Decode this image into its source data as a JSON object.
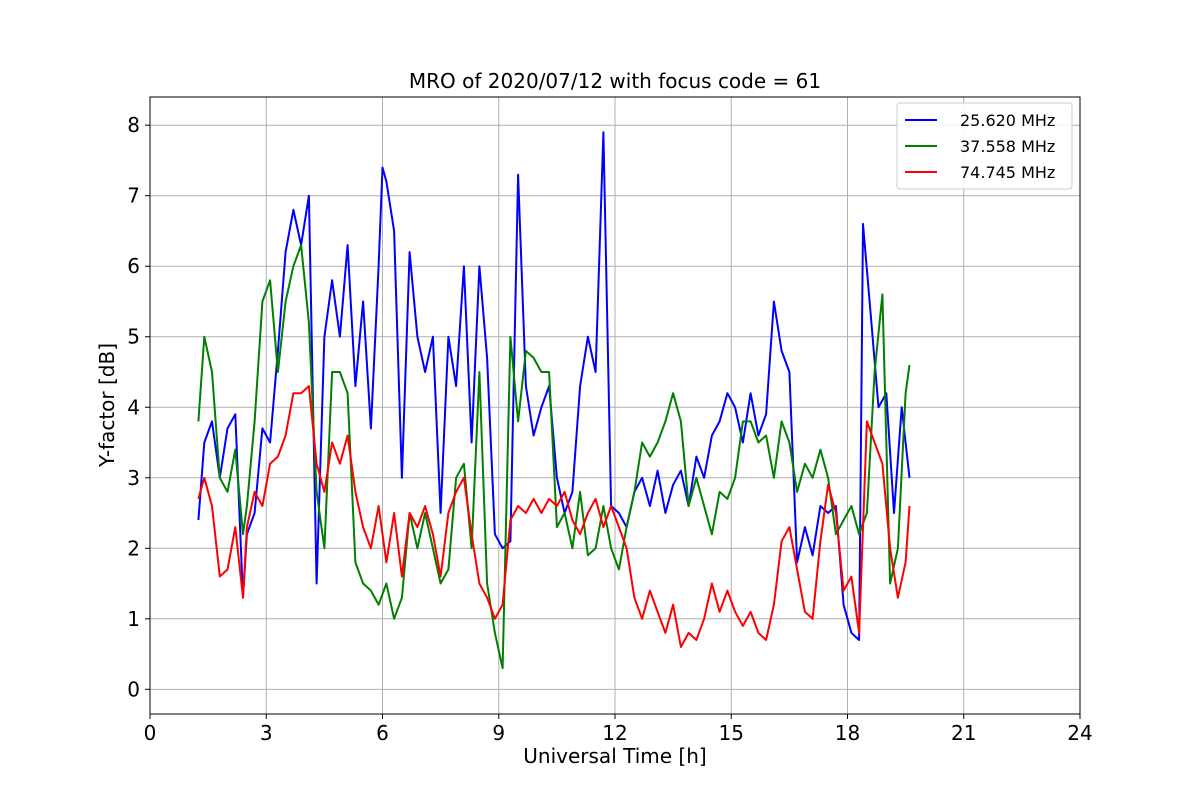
{
  "chart_data": {
    "type": "line",
    "title": "MRO of 2020/07/12 with focus code = 61",
    "xlabel": "Universal Time [h]",
    "ylabel": "Y-factor [dB]",
    "xlim": [
      0,
      24
    ],
    "ylim": [
      -0.35,
      8.4
    ],
    "xticks": [
      0,
      3,
      6,
      9,
      12,
      15,
      18,
      21,
      24
    ],
    "yticks": [
      0,
      1,
      2,
      3,
      4,
      5,
      6,
      7,
      8
    ],
    "grid": true,
    "legend_position": "top-right",
    "series": [
      {
        "name": "25.620 MHz",
        "color": "#0000ff",
        "x": [
          1.25,
          1.4,
          1.6,
          1.8,
          2.0,
          2.2,
          2.4,
          2.5,
          2.7,
          2.9,
          3.1,
          3.3,
          3.5,
          3.7,
          3.9,
          4.1,
          4.3,
          4.5,
          4.7,
          4.9,
          5.1,
          5.3,
          5.5,
          5.7,
          5.9,
          6.0,
          6.1,
          6.3,
          6.5,
          6.7,
          6.9,
          7.1,
          7.3,
          7.5,
          7.7,
          7.9,
          8.1,
          8.3,
          8.5,
          8.7,
          8.9,
          9.1,
          9.3,
          9.5,
          9.7,
          9.9,
          10.1,
          10.3,
          10.5,
          10.7,
          10.9,
          11.1,
          11.3,
          11.5,
          11.7,
          11.9,
          12.1,
          12.3,
          12.5,
          12.7,
          12.9,
          13.1,
          13.3,
          13.5,
          13.7,
          13.9,
          14.1,
          14.3,
          14.5,
          14.7,
          14.9,
          15.1,
          15.3,
          15.5,
          15.7,
          15.9,
          16.1,
          16.3,
          16.5,
          16.7,
          16.9,
          17.1,
          17.3,
          17.5,
          17.7,
          17.9,
          18.1,
          18.3,
          18.4,
          18.6,
          18.8,
          19.0,
          19.2,
          19.4,
          19.6
        ],
        "y": [
          2.4,
          3.5,
          3.8,
          3.0,
          3.7,
          3.9,
          1.3,
          2.2,
          2.5,
          3.7,
          3.5,
          4.8,
          6.2,
          6.8,
          6.3,
          7.0,
          1.5,
          5.0,
          5.8,
          5.0,
          6.3,
          4.3,
          5.5,
          3.7,
          6.0,
          7.4,
          7.2,
          6.5,
          3.0,
          6.2,
          5.0,
          4.5,
          5.0,
          2.5,
          5.0,
          4.3,
          6.0,
          3.5,
          6.0,
          4.7,
          2.2,
          2.0,
          2.1,
          7.3,
          4.3,
          3.6,
          4.0,
          4.3,
          3.0,
          2.5,
          2.8,
          4.3,
          5.0,
          4.5,
          7.9,
          2.6,
          2.5,
          2.3,
          2.8,
          3.0,
          2.6,
          3.1,
          2.5,
          2.9,
          3.1,
          2.6,
          3.3,
          3.0,
          3.6,
          3.8,
          4.2,
          4.0,
          3.5,
          4.2,
          3.6,
          3.9,
          5.5,
          4.8,
          4.5,
          1.8,
          2.3,
          1.9,
          2.6,
          2.5,
          2.6,
          1.2,
          0.8,
          0.7,
          6.6,
          5.3,
          4.0,
          4.2,
          2.5,
          4.0,
          3.0
        ]
      },
      {
        "name": "37.558 MHz",
        "color": "#008000",
        "x": [
          1.25,
          1.4,
          1.6,
          1.8,
          2.0,
          2.2,
          2.4,
          2.5,
          2.7,
          2.9,
          3.1,
          3.3,
          3.5,
          3.7,
          3.9,
          4.1,
          4.3,
          4.5,
          4.7,
          4.9,
          5.1,
          5.3,
          5.5,
          5.7,
          5.9,
          6.1,
          6.3,
          6.5,
          6.7,
          6.9,
          7.1,
          7.3,
          7.5,
          7.7,
          7.9,
          8.1,
          8.3,
          8.5,
          8.7,
          8.9,
          9.1,
          9.3,
          9.5,
          9.7,
          9.9,
          10.1,
          10.3,
          10.5,
          10.7,
          10.9,
          11.1,
          11.3,
          11.5,
          11.7,
          11.9,
          12.1,
          12.3,
          12.5,
          12.7,
          12.9,
          13.1,
          13.3,
          13.5,
          13.7,
          13.9,
          14.1,
          14.3,
          14.5,
          14.7,
          14.9,
          15.1,
          15.3,
          15.5,
          15.7,
          15.9,
          16.1,
          16.3,
          16.5,
          16.7,
          16.9,
          17.1,
          17.3,
          17.5,
          17.7,
          17.9,
          18.1,
          18.3,
          18.5,
          18.7,
          18.9,
          19.1,
          19.3,
          19.5,
          19.6
        ],
        "y": [
          3.8,
          5.0,
          4.5,
          3.0,
          2.8,
          3.4,
          2.2,
          2.6,
          3.8,
          5.5,
          5.8,
          4.5,
          5.5,
          6.0,
          6.3,
          5.2,
          2.8,
          2.0,
          4.5,
          4.5,
          4.2,
          1.8,
          1.5,
          1.4,
          1.2,
          1.5,
          1.0,
          1.3,
          2.5,
          2.0,
          2.5,
          2.0,
          1.5,
          1.7,
          3.0,
          3.2,
          2.0,
          4.5,
          1.5,
          0.8,
          0.3,
          5.0,
          3.8,
          4.8,
          4.7,
          4.5,
          4.5,
          2.3,
          2.5,
          2.0,
          2.8,
          1.9,
          2.0,
          2.6,
          2.0,
          1.7,
          2.3,
          2.8,
          3.5,
          3.3,
          3.5,
          3.8,
          4.2,
          3.8,
          2.6,
          3.0,
          2.6,
          2.2,
          2.8,
          2.7,
          3.0,
          3.8,
          3.8,
          3.5,
          3.6,
          3.0,
          3.8,
          3.5,
          2.8,
          3.2,
          3.0,
          3.4,
          3.0,
          2.2,
          2.4,
          2.6,
          2.2,
          2.5,
          4.5,
          5.6,
          1.5,
          2.0,
          4.2,
          4.6
        ]
      },
      {
        "name": "74.745 MHz",
        "color": "#ff0000",
        "x": [
          1.25,
          1.4,
          1.6,
          1.8,
          2.0,
          2.2,
          2.4,
          2.5,
          2.7,
          2.9,
          3.1,
          3.3,
          3.5,
          3.7,
          3.9,
          4.1,
          4.3,
          4.5,
          4.7,
          4.9,
          5.1,
          5.3,
          5.5,
          5.7,
          5.9,
          6.1,
          6.3,
          6.5,
          6.7,
          6.9,
          7.1,
          7.3,
          7.5,
          7.7,
          7.9,
          8.1,
          8.3,
          8.5,
          8.7,
          8.9,
          9.1,
          9.3,
          9.5,
          9.7,
          9.9,
          10.1,
          10.3,
          10.5,
          10.7,
          10.9,
          11.1,
          11.3,
          11.5,
          11.7,
          11.9,
          12.1,
          12.3,
          12.5,
          12.7,
          12.9,
          13.1,
          13.3,
          13.5,
          13.7,
          13.9,
          14.1,
          14.3,
          14.5,
          14.7,
          14.9,
          15.1,
          15.3,
          15.5,
          15.7,
          15.9,
          16.1,
          16.3,
          16.5,
          16.7,
          16.9,
          17.1,
          17.3,
          17.5,
          17.7,
          17.9,
          18.1,
          18.3,
          18.5,
          18.7,
          18.9,
          19.1,
          19.3,
          19.5,
          19.6
        ],
        "y": [
          2.7,
          3.0,
          2.6,
          1.6,
          1.7,
          2.3,
          1.3,
          2.3,
          2.8,
          2.6,
          3.2,
          3.3,
          3.6,
          4.2,
          4.2,
          4.3,
          3.2,
          2.8,
          3.5,
          3.2,
          3.6,
          2.8,
          2.3,
          2.0,
          2.6,
          1.8,
          2.5,
          1.6,
          2.5,
          2.3,
          2.6,
          2.2,
          1.6,
          2.5,
          2.8,
          3.0,
          2.2,
          1.5,
          1.3,
          1.0,
          1.2,
          2.4,
          2.6,
          2.5,
          2.7,
          2.5,
          2.7,
          2.6,
          2.8,
          2.4,
          2.2,
          2.5,
          2.7,
          2.3,
          2.6,
          2.3,
          2.0,
          1.3,
          1.0,
          1.4,
          1.1,
          0.8,
          1.2,
          0.6,
          0.8,
          0.7,
          1.0,
          1.5,
          1.1,
          1.4,
          1.1,
          0.9,
          1.1,
          0.8,
          0.7,
          1.2,
          2.1,
          2.3,
          1.7,
          1.1,
          1.0,
          2.1,
          2.9,
          2.5,
          1.4,
          1.6,
          0.8,
          3.8,
          3.5,
          3.2,
          2.0,
          1.3,
          1.8,
          2.6
        ]
      }
    ]
  }
}
